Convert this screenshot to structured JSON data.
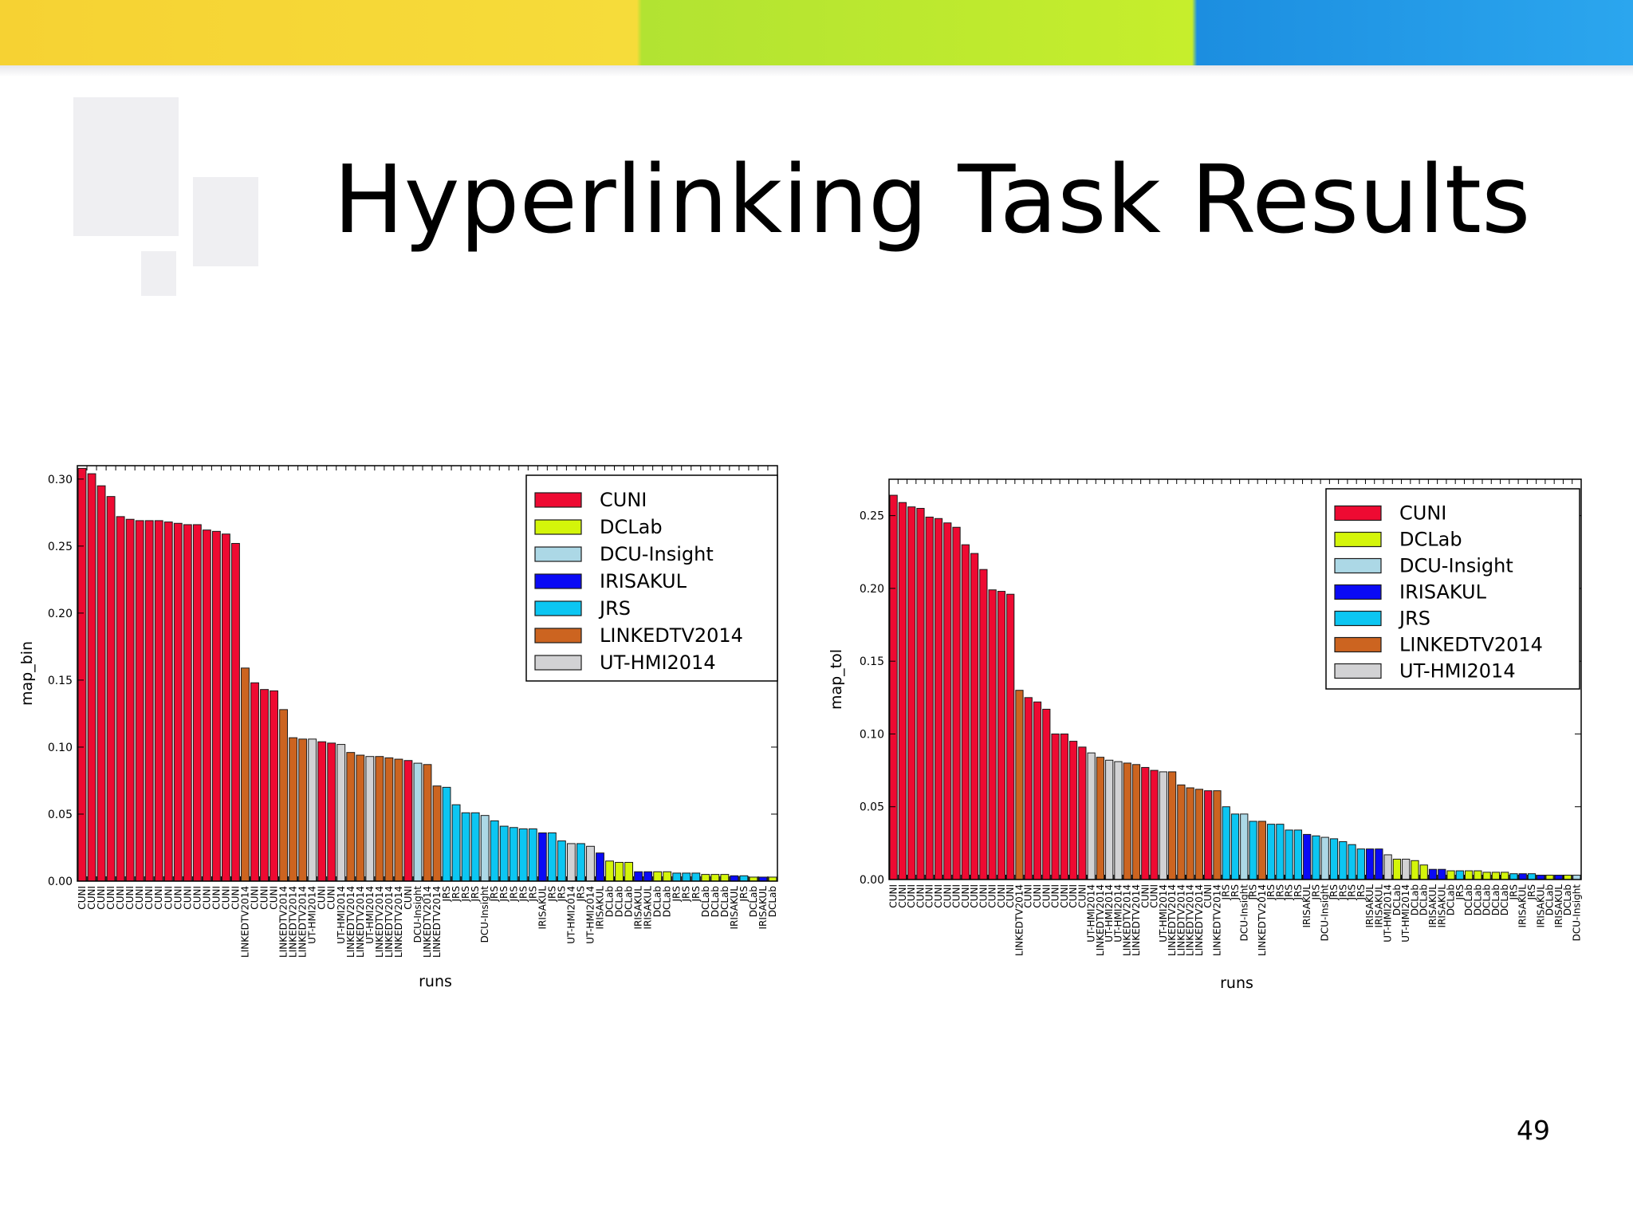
{
  "slide": {
    "title": "Hyperlinking Task Results",
    "page_number": "49"
  },
  "colors": {
    "CUNI": "#ee0a32",
    "DCLab": "#d4f50a",
    "DCU-Insight": "#acd8e6",
    "IRISAKUL": "#0a0af5",
    "JRS": "#0cc6f2",
    "LINKEDTV2014": "#cc6420",
    "UT-HMI2014": "#d2d2d4"
  },
  "chart_data": [
    {
      "type": "bar",
      "xlabel": "runs",
      "ylabel": "map_bin",
      "ylim": [
        0,
        0.31
      ],
      "yticks": [
        "0.00",
        "0.05",
        "0.10",
        "0.15",
        "0.20",
        "0.25",
        "0.30"
      ],
      "legend": {
        "placement": "top-right",
        "entries": [
          "CUNI",
          "DCLab",
          "DCU-Insight",
          "IRISAKUL",
          "JRS",
          "LINKEDTV2014",
          "UT-HMI2014"
        ]
      },
      "categories": [
        "CUNI",
        "CUNI",
        "CUNI",
        "CUNI",
        "CUNI",
        "CUNI",
        "CUNI",
        "CUNI",
        "CUNI",
        "CUNI",
        "CUNI",
        "CUNI",
        "CUNI",
        "CUNI",
        "CUNI",
        "CUNI",
        "CUNI",
        "LINKEDTV2014",
        "CUNI",
        "CUNI",
        "CUNI",
        "LINKEDTV2014",
        "LINKEDTV2014",
        "LINKEDTV2014",
        "UT-HMI2014",
        "CUNI",
        "CUNI",
        "UT-HMI2014",
        "LINKEDTV2014",
        "LINKEDTV2014",
        "UT-HMI2014",
        "LINKEDTV2014",
        "LINKEDTV2014",
        "LINKEDTV2014",
        "CUNI",
        "DCU-Insight",
        "LINKEDTV2014",
        "LINKEDTV2014",
        "JRS",
        "JRS",
        "JRS",
        "JRS",
        "DCU-Insight",
        "JRS",
        "JRS",
        "JRS",
        "JRS",
        "JRS",
        "IRISAKUL",
        "JRS",
        "JRS",
        "UT-HMI2014",
        "JRS",
        "UT-HMI2014",
        "IRISAKUL",
        "DCLab",
        "DCLab",
        "DCLab",
        "IRISAKUL",
        "IRISAKUL",
        "DCLab",
        "DCLab",
        "JRS",
        "JRS",
        "JRS",
        "DCLab",
        "DCLab",
        "DCLab",
        "IRISAKUL",
        "JRS",
        "DCLab",
        "IRISAKUL",
        "DCLab"
      ],
      "values": [
        0.308,
        0.304,
        0.295,
        0.287,
        0.272,
        0.27,
        0.269,
        0.269,
        0.269,
        0.268,
        0.267,
        0.266,
        0.266,
        0.262,
        0.261,
        0.259,
        0.252,
        0.159,
        0.148,
        0.143,
        0.142,
        0.128,
        0.107,
        0.106,
        0.106,
        0.104,
        0.103,
        0.102,
        0.096,
        0.094,
        0.093,
        0.093,
        0.092,
        0.091,
        0.09,
        0.088,
        0.087,
        0.071,
        0.07,
        0.057,
        0.051,
        0.051,
        0.049,
        0.045,
        0.041,
        0.04,
        0.039,
        0.039,
        0.036,
        0.036,
        0.03,
        0.028,
        0.028,
        0.026,
        0.021,
        0.015,
        0.014,
        0.014,
        0.007,
        0.007,
        0.007,
        0.007,
        0.006,
        0.006,
        0.006,
        0.005,
        0.005,
        0.005,
        0.004,
        0.004,
        0.003,
        0.003,
        0.003
      ]
    },
    {
      "type": "bar",
      "xlabel": "runs",
      "ylabel": "map_tol",
      "ylim": [
        0,
        0.275
      ],
      "yticks": [
        "0.00",
        "0.05",
        "0.10",
        "0.15",
        "0.20",
        "0.25"
      ],
      "legend": {
        "placement": "top-right",
        "entries": [
          "CUNI",
          "DCLab",
          "DCU-Insight",
          "IRISAKUL",
          "JRS",
          "LINKEDTV2014",
          "UT-HMI2014"
        ]
      },
      "categories": [
        "CUNI",
        "CUNI",
        "CUNI",
        "CUNI",
        "CUNI",
        "CUNI",
        "CUNI",
        "CUNI",
        "CUNI",
        "CUNI",
        "CUNI",
        "CUNI",
        "CUNI",
        "CUNI",
        "LINKEDTV2014",
        "CUNI",
        "CUNI",
        "CUNI",
        "CUNI",
        "CUNI",
        "CUNI",
        "CUNI",
        "UT-HMI2014",
        "LINKEDTV2014",
        "UT-HMI2014",
        "UT-HMI2014",
        "LINKEDTV2014",
        "LINKEDTV2014",
        "CUNI",
        "CUNI",
        "UT-HMI2014",
        "LINKEDTV2014",
        "LINKEDTV2014",
        "LINKEDTV2014",
        "LINKEDTV2014",
        "CUNI",
        "LINKEDTV2014",
        "JRS",
        "JRS",
        "DCU-Insight",
        "JRS",
        "LINKEDTV2014",
        "JRS",
        "JRS",
        "JRS",
        "JRS",
        "IRISAKUL",
        "JRS",
        "DCU-Insight",
        "JRS",
        "JRS",
        "JRS",
        "JRS",
        "IRISAKUL",
        "IRISAKUL",
        "UT-HMI2014",
        "DCLab",
        "UT-HMI2014",
        "DCLab",
        "DCLab",
        "IRISAKUL",
        "IRISAKUL",
        "DCLab",
        "JRS",
        "DCLab",
        "DCLab",
        "DCLab",
        "DCLab",
        "DCLab",
        "JRS",
        "IRISAKUL",
        "JRS",
        "IRISAKUL",
        "DCLab",
        "IRISAKUL",
        "DCLab",
        "DCU-Insight"
      ],
      "values": [
        0.264,
        0.259,
        0.256,
        0.255,
        0.249,
        0.248,
        0.245,
        0.242,
        0.23,
        0.224,
        0.213,
        0.199,
        0.198,
        0.196,
        0.13,
        0.125,
        0.122,
        0.117,
        0.1,
        0.1,
        0.095,
        0.091,
        0.087,
        0.084,
        0.082,
        0.081,
        0.08,
        0.079,
        0.077,
        0.075,
        0.074,
        0.074,
        0.065,
        0.063,
        0.062,
        0.061,
        0.061,
        0.05,
        0.045,
        0.045,
        0.04,
        0.04,
        0.038,
        0.038,
        0.034,
        0.034,
        0.031,
        0.03,
        0.029,
        0.028,
        0.026,
        0.024,
        0.021,
        0.021,
        0.021,
        0.017,
        0.014,
        0.014,
        0.013,
        0.01,
        0.007,
        0.007,
        0.006,
        0.006,
        0.006,
        0.006,
        0.005,
        0.005,
        0.005,
        0.004,
        0.004,
        0.004,
        0.003,
        0.003,
        0.003,
        0.003,
        0.003
      ]
    }
  ]
}
